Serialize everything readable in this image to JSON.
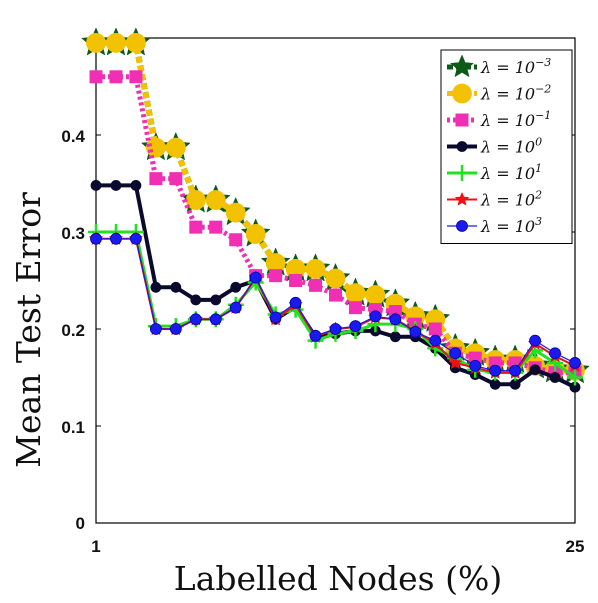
{
  "chart_data": {
    "type": "line",
    "title": "",
    "xlabel": "Labelled Nodes (%)",
    "ylabel": "Mean Test Error",
    "xlim": [
      1,
      25
    ],
    "ylim": [
      0,
      0.5
    ],
    "x_ticks": [
      "1",
      "25"
    ],
    "y_ticks": [
      "0",
      "0.1",
      "0.2",
      "0.3",
      "0.4"
    ],
    "grid": false,
    "legend_position": "top-right",
    "x": [
      1,
      2,
      3,
      4,
      5,
      6,
      7,
      8,
      9,
      10,
      11,
      12,
      13,
      14,
      15,
      16,
      17,
      18,
      19,
      20,
      21,
      22,
      23,
      24,
      25
    ],
    "series": [
      {
        "name": "λ = 10^-3",
        "legend_base": "λ = 10",
        "legend_exp": "−3",
        "color": "#0b5a17",
        "marker": "star",
        "values": [
          0.495,
          0.495,
          0.495,
          0.387,
          0.387,
          0.333,
          0.333,
          0.32,
          0.298,
          0.268,
          0.262,
          0.262,
          0.252,
          0.237,
          0.235,
          0.226,
          0.213,
          0.21,
          0.18,
          0.175,
          0.168,
          0.168,
          0.162,
          0.158,
          0.157
        ]
      },
      {
        "name": "λ = 10^-2",
        "legend_base": "λ = 10",
        "legend_exp": "−2",
        "color": "#f2c200",
        "marker": "circle",
        "values": [
          0.495,
          0.495,
          0.495,
          0.387,
          0.387,
          0.333,
          0.333,
          0.32,
          0.298,
          0.268,
          0.262,
          0.262,
          0.252,
          0.237,
          0.235,
          0.226,
          0.213,
          0.21,
          0.18,
          0.175,
          0.168,
          0.168,
          0.162,
          0.158,
          0.157
        ]
      },
      {
        "name": "λ = 10^-1",
        "legend_base": "λ = 10",
        "legend_exp": "−1",
        "color": "#f02fb4",
        "marker": "square",
        "values": [
          0.46,
          0.46,
          0.46,
          0.355,
          0.355,
          0.305,
          0.305,
          0.292,
          0.255,
          0.255,
          0.25,
          0.245,
          0.235,
          0.222,
          0.22,
          0.218,
          0.205,
          0.2,
          0.175,
          0.17,
          0.165,
          0.165,
          0.16,
          0.155,
          0.155
        ]
      },
      {
        "name": "λ = 10^0",
        "legend_base": "λ = 10",
        "legend_exp": "0",
        "color": "#0a0a2e",
        "marker": "circle",
        "values": [
          0.348,
          0.348,
          0.348,
          0.243,
          0.243,
          0.23,
          0.23,
          0.243,
          0.25,
          0.21,
          0.223,
          0.192,
          0.195,
          0.198,
          0.198,
          0.192,
          0.192,
          0.18,
          0.16,
          0.153,
          0.143,
          0.143,
          0.158,
          0.15,
          0.14
        ]
      },
      {
        "name": "λ = 10^1",
        "legend_base": "λ = 10",
        "legend_exp": "1",
        "color": "#22e022",
        "marker": "plus",
        "values": [
          0.3,
          0.3,
          0.3,
          0.203,
          0.203,
          0.21,
          0.21,
          0.225,
          0.248,
          0.215,
          0.22,
          0.188,
          0.195,
          0.198,
          0.205,
          0.205,
          0.2,
          0.18,
          0.17,
          0.158,
          0.155,
          0.155,
          0.178,
          0.165,
          0.15
        ]
      },
      {
        "name": "λ = 10^2",
        "legend_base": "λ = 10",
        "legend_exp": "2",
        "color": "#ee1111",
        "marker": "star",
        "values": [
          0.293,
          0.293,
          0.293,
          0.2,
          0.2,
          0.21,
          0.21,
          0.222,
          0.253,
          0.21,
          0.225,
          0.192,
          0.2,
          0.202,
          0.212,
          0.21,
          0.198,
          0.185,
          0.165,
          0.16,
          0.155,
          0.155,
          0.185,
          0.172,
          0.162
        ]
      },
      {
        "name": "λ = 10^3",
        "legend_base": "λ = 10",
        "legend_exp": "3",
        "color": "#1a1aee",
        "marker": "circle",
        "values": [
          0.293,
          0.293,
          0.293,
          0.2,
          0.2,
          0.21,
          0.21,
          0.222,
          0.253,
          0.212,
          0.227,
          0.193,
          0.2,
          0.203,
          0.213,
          0.21,
          0.197,
          0.188,
          0.175,
          0.162,
          0.157,
          0.157,
          0.188,
          0.175,
          0.165
        ]
      }
    ]
  }
}
